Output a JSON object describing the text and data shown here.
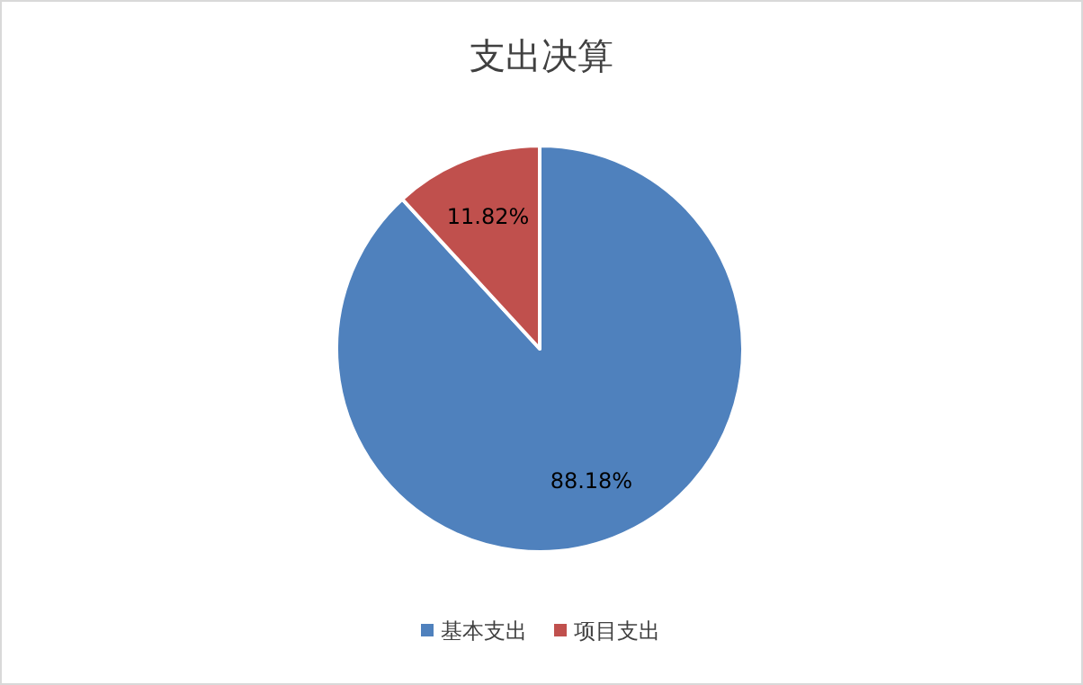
{
  "chart_data": {
    "type": "pie",
    "title": "支出决算",
    "categories": [
      "基本支出",
      "项目支出"
    ],
    "values": [
      88.18,
      11.82
    ],
    "colors": [
      "#4f81bd",
      "#c0504d"
    ],
    "value_labels": [
      "88.18%",
      "11.82%"
    ],
    "legend": "bottom"
  }
}
